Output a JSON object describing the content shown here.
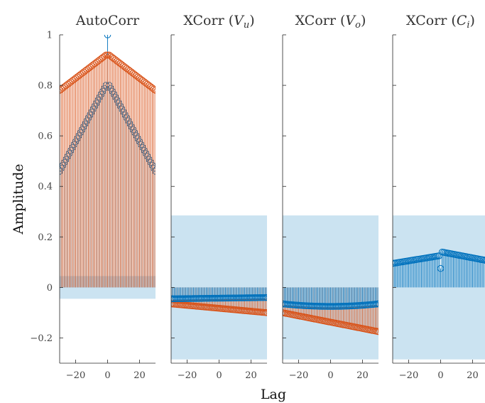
{
  "colors": {
    "blue": "#0072BD",
    "orange": "#D95319",
    "band": "#B9D9EC"
  },
  "xlabel": "Lag",
  "ylabel": "Amplitude",
  "y_ticks": [
    {
      "value": -0.2,
      "label": "−0.2"
    },
    {
      "value": 0,
      "label": "0"
    },
    {
      "value": 0.2,
      "label": "0.2"
    },
    {
      "value": 0.4,
      "label": "0.4"
    },
    {
      "value": 0.6,
      "label": "0.6"
    },
    {
      "value": 0.8,
      "label": "0.8"
    },
    {
      "value": 1,
      "label": "1"
    }
  ],
  "x_ticks": [
    {
      "value": -20,
      "label": "−20"
    },
    {
      "value": 0,
      "label": "0"
    },
    {
      "value": 20,
      "label": "20"
    }
  ],
  "chart_data": [
    {
      "type": "stem",
      "title": "AutoCorr",
      "xlim": [
        -30,
        30
      ],
      "ylim": [
        -0.3,
        1
      ],
      "confidence_band": [
        -0.045,
        0.045
      ],
      "series": [
        {
          "color": "blue",
          "curve": "tri",
          "lag0": 1.0,
          "near_zero": 0.8,
          "at_edge": 0.46
        },
        {
          "color": "orange",
          "curve": "tri",
          "lag0": 0.92,
          "near_zero": 0.92,
          "at_edge": 0.78
        }
      ]
    },
    {
      "type": "stem",
      "title": "XCorr (V_u)",
      "title_main": "XCorr",
      "title_var": "V",
      "title_sub": "u",
      "xlim": [
        -30,
        30
      ],
      "ylim": [
        -0.3,
        1
      ],
      "confidence_band": [
        -0.285,
        0.285
      ],
      "series": [
        {
          "color": "orange",
          "curve": "lin",
          "at_min": -0.065,
          "at_max": -0.1
        },
        {
          "color": "blue",
          "curve": "lin",
          "at_min": -0.045,
          "at_max": -0.04
        }
      ]
    },
    {
      "type": "stem",
      "title": "XCorr (V_o)",
      "title_main": "XCorr",
      "title_var": "V",
      "title_sub": "o",
      "xlim": [
        -30,
        30
      ],
      "ylim": [
        -0.3,
        1
      ],
      "confidence_band": [
        -0.285,
        0.285
      ],
      "series": [
        {
          "color": "orange",
          "curve": "lin",
          "at_min": -0.1,
          "at_max": -0.175
        },
        {
          "color": "blue",
          "curve": "bow",
          "at_min": -0.065,
          "at_mid": -0.075,
          "at_max": -0.065
        }
      ]
    },
    {
      "type": "stem",
      "title": "XCorr (C_i)",
      "title_main": "XCorr",
      "title_var": "C",
      "title_sub": "i",
      "xlim": [
        -30,
        30
      ],
      "ylim": [
        -0.3,
        1
      ],
      "confidence_band": [
        -0.285,
        0.285
      ],
      "series": [
        {
          "color": "blue",
          "curve": "peak",
          "at_min": 0.095,
          "before_zero": 0.125,
          "lag0": 0.075,
          "after_zero": 0.14,
          "at_max": 0.105
        }
      ]
    }
  ]
}
